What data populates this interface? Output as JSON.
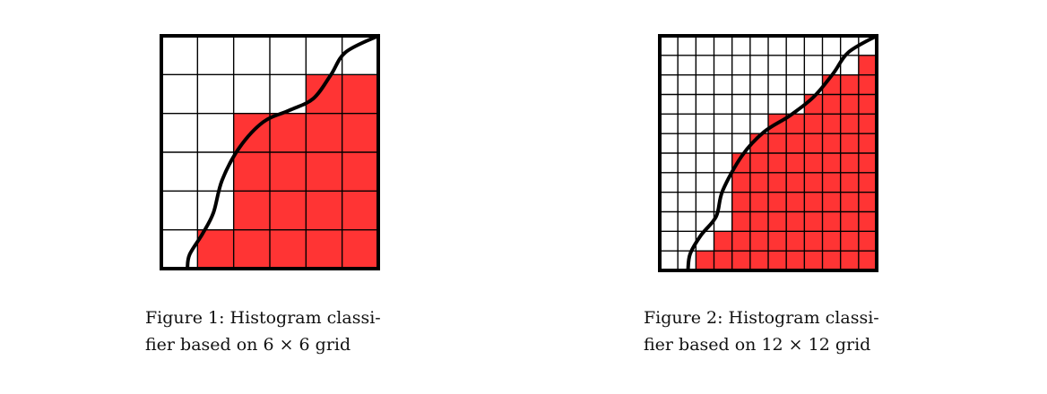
{
  "colors": {
    "fill": "#ff3434",
    "grid": "#000000",
    "curve": "#000000"
  },
  "figures": [
    {
      "grid_n": 6,
      "filled_counts_from_bottom": [
        5,
        4,
        4,
        4,
        2,
        0
      ],
      "curve": [
        [
          0.12,
          0.0
        ],
        [
          0.13,
          0.06
        ],
        [
          0.19,
          0.15
        ],
        [
          0.24,
          0.24
        ],
        [
          0.28,
          0.38
        ],
        [
          0.36,
          0.52
        ],
        [
          0.47,
          0.63
        ],
        [
          0.59,
          0.68
        ],
        [
          0.7,
          0.73
        ],
        [
          0.78,
          0.83
        ],
        [
          0.85,
          0.93
        ],
        [
          1.0,
          1.0
        ]
      ],
      "caption_lines": [
        "Figure 1:  Histogram classi-",
        "fier based on 6 × 6 grid"
      ]
    },
    {
      "grid_n": 12,
      "filled_counts_from_bottom": [
        10,
        9,
        8,
        8,
        8,
        8,
        7,
        6,
        4,
        3,
        1,
        0
      ],
      "curve": [
        [
          0.13,
          0.0
        ],
        [
          0.14,
          0.07
        ],
        [
          0.19,
          0.15
        ],
        [
          0.26,
          0.23
        ],
        [
          0.29,
          0.34
        ],
        [
          0.38,
          0.49
        ],
        [
          0.48,
          0.59
        ],
        [
          0.6,
          0.66
        ],
        [
          0.71,
          0.74
        ],
        [
          0.8,
          0.84
        ],
        [
          0.87,
          0.93
        ],
        [
          1.0,
          1.0
        ]
      ],
      "caption_lines": [
        "Figure 2:  Histogram classi-",
        "fier based on 12 × 12 grid"
      ]
    }
  ]
}
